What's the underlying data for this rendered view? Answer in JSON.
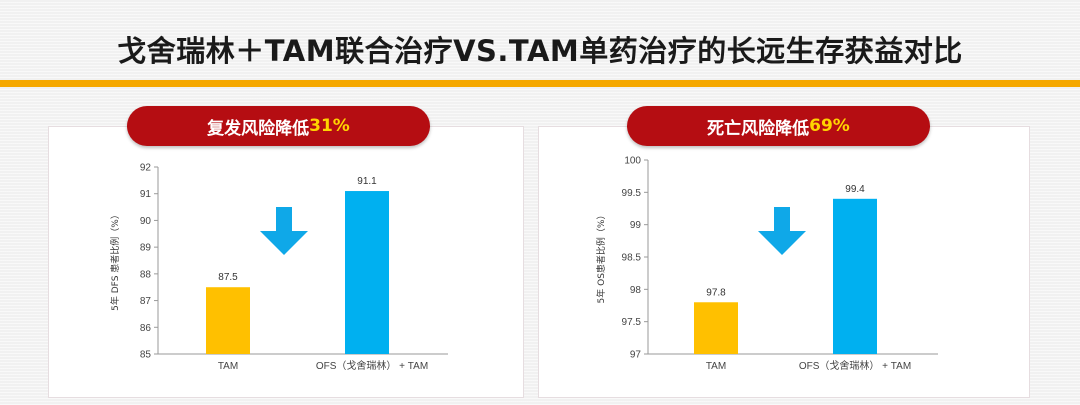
{
  "title": "戈舍瑞林＋TAM联合治疗VS.TAM单药治疗的长远生存获益对比",
  "colors": {
    "accent": "#f5a800",
    "pill": "#b50d12",
    "pill_highlight": "#ffd400",
    "bar_tam": "#ffc000",
    "bar_ofs": "#00b0f0",
    "arrow": "#0fa8e8"
  },
  "left_panel": {
    "pill_text": "复发风险降低",
    "pill_pct": "31%"
  },
  "right_panel": {
    "pill_text": "死亡风险降低",
    "pill_pct": "69%"
  },
  "chart_data": [
    {
      "type": "bar",
      "categories": [
        "TAM",
        "OFS（戈舍瑞林） + TAM"
      ],
      "values": [
        87.5,
        91.1
      ],
      "value_labels": [
        "87.5",
        "91.1"
      ],
      "ylabel": "5年 DFS 患者比例（%）",
      "ylim": [
        85,
        92
      ],
      "yticks": [
        "85",
        "86",
        "87",
        "88",
        "89",
        "90",
        "91",
        "92"
      ],
      "bar_colors": [
        "#ffc000",
        "#00b0f0"
      ],
      "grid": false,
      "annotation": "down-arrow-icon"
    },
    {
      "type": "bar",
      "categories": [
        "TAM",
        "OFS（戈舍瑞林） + TAM"
      ],
      "values": [
        97.8,
        99.4
      ],
      "value_labels": [
        "97.8",
        "99.4"
      ],
      "ylabel": "5年 OS患者比例（%）",
      "ylim": [
        97,
        100
      ],
      "yticks": [
        "97",
        "97.5",
        "98",
        "98.5",
        "99",
        "99.5",
        "100"
      ],
      "bar_colors": [
        "#ffc000",
        "#00b0f0"
      ],
      "grid": false,
      "annotation": "down-arrow-icon"
    }
  ]
}
